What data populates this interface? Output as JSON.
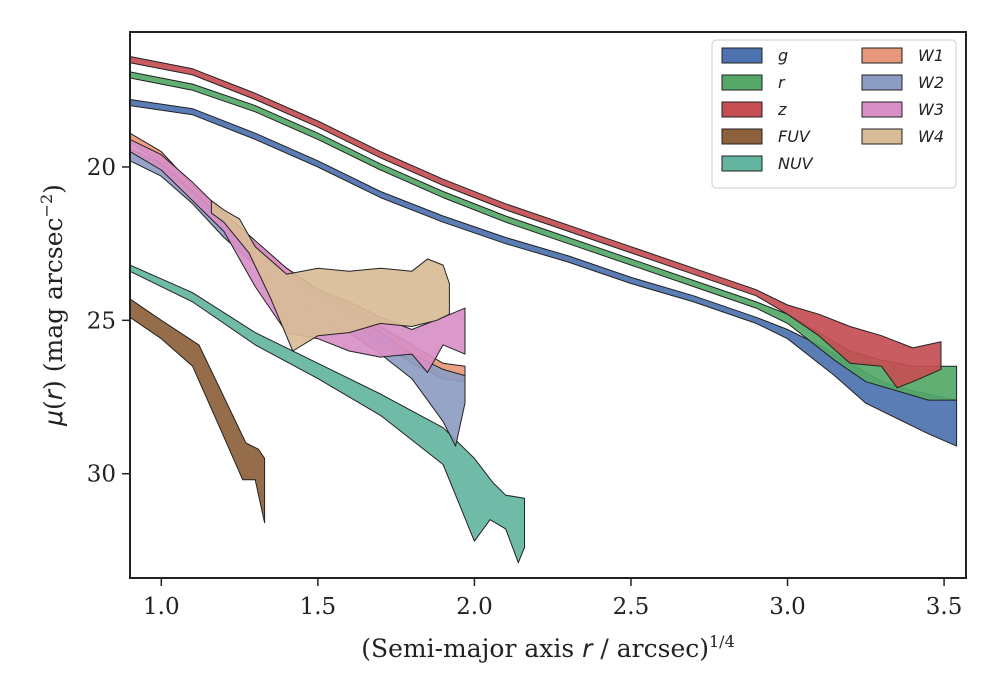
{
  "chart_data": {
    "type": "area",
    "xlabel_main": "(Semi-major axis ",
    "xlabel_r": "r",
    "xlabel_mid": " / arcsec)",
    "xlabel_exp": "1/4",
    "ylabel_mu": "μ",
    "ylabel_open": "(",
    "ylabel_r": "r",
    "ylabel_close": ") (mag arcsec",
    "ylabel_exp": "−2",
    "ylabel_end": ")",
    "xlim": [
      0.9,
      3.57
    ],
    "ylim": [
      33.4,
      15.6
    ],
    "y_inverted": true,
    "xticks": [
      1.0,
      1.5,
      2.0,
      2.5,
      3.0,
      3.5
    ],
    "xtick_labels": [
      "1.0",
      "1.5",
      "2.0",
      "2.5",
      "3.0",
      "3.5"
    ],
    "yticks": [
      20,
      25,
      30
    ],
    "ytick_labels": [
      "20",
      "25",
      "30"
    ],
    "grid": false,
    "legend_position": "top-right",
    "legend_columns": 2,
    "series": [
      {
        "name": "g",
        "color": "#4c72b0",
        "upper": [
          [
            0.9,
            17.8
          ],
          [
            1.1,
            18.1
          ],
          [
            1.3,
            18.9
          ],
          [
            1.5,
            19.8
          ],
          [
            1.7,
            20.8
          ],
          [
            1.9,
            21.6
          ],
          [
            2.1,
            22.3
          ],
          [
            2.3,
            22.9
          ],
          [
            2.5,
            23.6
          ],
          [
            2.7,
            24.2
          ],
          [
            2.9,
            24.9
          ],
          [
            3.0,
            25.3
          ],
          [
            3.1,
            25.8
          ],
          [
            3.2,
            26.4
          ],
          [
            3.3,
            27.0
          ],
          [
            3.4,
            27.3
          ],
          [
            3.54,
            27.6
          ]
        ],
        "lower": [
          [
            3.54,
            29.1
          ],
          [
            3.45,
            28.7
          ],
          [
            3.35,
            28.2
          ],
          [
            3.25,
            27.7
          ],
          [
            3.15,
            26.8
          ],
          [
            3.0,
            25.6
          ],
          [
            2.9,
            25.1
          ],
          [
            2.7,
            24.4
          ],
          [
            2.5,
            23.8
          ],
          [
            2.3,
            23.1
          ],
          [
            2.1,
            22.5
          ],
          [
            1.9,
            21.8
          ],
          [
            1.7,
            21.0
          ],
          [
            1.5,
            20.0
          ],
          [
            1.3,
            19.1
          ],
          [
            1.1,
            18.3
          ],
          [
            0.9,
            18.0
          ]
        ]
      },
      {
        "name": "r",
        "color": "#55a868",
        "upper": [
          [
            0.9,
            16.9
          ],
          [
            1.1,
            17.3
          ],
          [
            1.3,
            18.0
          ],
          [
            1.5,
            18.9
          ],
          [
            1.7,
            19.9
          ],
          [
            1.9,
            20.8
          ],
          [
            2.1,
            21.6
          ],
          [
            2.3,
            22.3
          ],
          [
            2.5,
            23.0
          ],
          [
            2.7,
            23.7
          ],
          [
            2.9,
            24.4
          ],
          [
            3.0,
            24.8
          ],
          [
            3.1,
            25.4
          ],
          [
            3.2,
            26.0
          ],
          [
            3.3,
            26.3
          ],
          [
            3.4,
            26.5
          ],
          [
            3.54,
            26.5
          ]
        ],
        "lower": [
          [
            3.54,
            27.6
          ],
          [
            3.45,
            27.6
          ],
          [
            3.35,
            27.3
          ],
          [
            3.25,
            27.0
          ],
          [
            3.15,
            26.3
          ],
          [
            3.0,
            25.1
          ],
          [
            2.9,
            24.6
          ],
          [
            2.7,
            23.9
          ],
          [
            2.5,
            23.2
          ],
          [
            2.3,
            22.5
          ],
          [
            2.1,
            21.8
          ],
          [
            1.9,
            21.0
          ],
          [
            1.7,
            20.1
          ],
          [
            1.5,
            19.1
          ],
          [
            1.3,
            18.2
          ],
          [
            1.1,
            17.5
          ],
          [
            0.9,
            17.1
          ]
        ]
      },
      {
        "name": "z",
        "color": "#c44e52",
        "upper": [
          [
            0.9,
            16.4
          ],
          [
            1.1,
            16.8
          ],
          [
            1.3,
            17.6
          ],
          [
            1.5,
            18.5
          ],
          [
            1.7,
            19.5
          ],
          [
            1.9,
            20.4
          ],
          [
            2.1,
            21.2
          ],
          [
            2.3,
            21.9
          ],
          [
            2.5,
            22.6
          ],
          [
            2.7,
            23.3
          ],
          [
            2.9,
            24.0
          ],
          [
            3.0,
            24.5
          ],
          [
            3.1,
            24.8
          ],
          [
            3.2,
            25.2
          ],
          [
            3.3,
            25.5
          ],
          [
            3.4,
            25.9
          ],
          [
            3.49,
            25.7
          ]
        ],
        "lower": [
          [
            3.49,
            26.6
          ],
          [
            3.4,
            27.0
          ],
          [
            3.35,
            27.2
          ],
          [
            3.3,
            26.5
          ],
          [
            3.2,
            26.4
          ],
          [
            3.1,
            25.5
          ],
          [
            3.0,
            24.8
          ],
          [
            2.9,
            24.2
          ],
          [
            2.7,
            23.5
          ],
          [
            2.5,
            22.8
          ],
          [
            2.3,
            22.1
          ],
          [
            2.1,
            21.4
          ],
          [
            1.9,
            20.6
          ],
          [
            1.7,
            19.7
          ],
          [
            1.5,
            18.7
          ],
          [
            1.3,
            17.8
          ],
          [
            1.1,
            17.0
          ],
          [
            0.9,
            16.6
          ]
        ]
      },
      {
        "name": "FUV",
        "color": "#8c613c",
        "upper": [
          [
            0.9,
            24.3
          ],
          [
            1.0,
            25.0
          ],
          [
            1.12,
            25.8
          ],
          [
            1.2,
            27.5
          ],
          [
            1.27,
            29.0
          ],
          [
            1.31,
            29.2
          ],
          [
            1.33,
            29.5
          ]
        ],
        "lower": [
          [
            1.33,
            31.6
          ],
          [
            1.3,
            30.2
          ],
          [
            1.26,
            30.2
          ],
          [
            1.2,
            28.8
          ],
          [
            1.1,
            26.5
          ],
          [
            1.0,
            25.6
          ],
          [
            0.9,
            24.9
          ]
        ]
      },
      {
        "name": "NUV",
        "color": "#64b5a0",
        "upper": [
          [
            0.9,
            23.2
          ],
          [
            1.1,
            24.1
          ],
          [
            1.3,
            25.4
          ],
          [
            1.5,
            26.4
          ],
          [
            1.7,
            27.4
          ],
          [
            1.9,
            28.5
          ],
          [
            2.0,
            29.5
          ],
          [
            2.06,
            30.3
          ],
          [
            2.1,
            30.7
          ],
          [
            2.16,
            30.8
          ]
        ],
        "lower": [
          [
            2.16,
            32.4
          ],
          [
            2.14,
            32.9
          ],
          [
            2.1,
            31.8
          ],
          [
            2.05,
            31.5
          ],
          [
            2.0,
            32.2
          ],
          [
            1.9,
            29.7
          ],
          [
            1.7,
            28.1
          ],
          [
            1.5,
            26.9
          ],
          [
            1.3,
            25.8
          ],
          [
            1.1,
            24.4
          ],
          [
            0.9,
            23.4
          ]
        ]
      },
      {
        "name": "W1",
        "color": "#e8987a",
        "upper": [
          [
            0.9,
            18.9
          ],
          [
            1.0,
            19.5
          ],
          [
            1.1,
            20.6
          ],
          [
            1.2,
            21.5
          ],
          [
            1.3,
            22.5
          ],
          [
            1.4,
            23.3
          ],
          [
            1.5,
            24.0
          ],
          [
            1.6,
            24.5
          ],
          [
            1.7,
            25.2
          ],
          [
            1.8,
            25.8
          ],
          [
            1.9,
            26.4
          ],
          [
            1.97,
            26.5
          ]
        ],
        "lower": [
          [
            1.97,
            27.0
          ],
          [
            1.9,
            26.9
          ],
          [
            1.8,
            26.4
          ],
          [
            1.7,
            25.7
          ],
          [
            1.6,
            25.1
          ],
          [
            1.5,
            24.5
          ],
          [
            1.4,
            23.8
          ],
          [
            1.3,
            22.9
          ],
          [
            1.2,
            21.9
          ],
          [
            1.1,
            20.9
          ],
          [
            1.0,
            19.9
          ],
          [
            0.9,
            19.2
          ]
        ]
      },
      {
        "name": "W2",
        "color": "#8c9cc2",
        "upper": [
          [
            0.9,
            19.4
          ],
          [
            1.0,
            19.9
          ],
          [
            1.1,
            20.8
          ],
          [
            1.2,
            21.7
          ],
          [
            1.3,
            22.6
          ],
          [
            1.4,
            23.5
          ],
          [
            1.5,
            24.2
          ],
          [
            1.6,
            24.8
          ],
          [
            1.7,
            25.4
          ],
          [
            1.8,
            26.1
          ],
          [
            1.9,
            26.6
          ],
          [
            1.97,
            26.8
          ]
        ],
        "lower": [
          [
            1.97,
            27.7
          ],
          [
            1.94,
            29.1
          ],
          [
            1.9,
            28.3
          ],
          [
            1.85,
            27.6
          ],
          [
            1.8,
            26.9
          ],
          [
            1.7,
            26.1
          ],
          [
            1.6,
            25.4
          ],
          [
            1.5,
            24.8
          ],
          [
            1.4,
            24.1
          ],
          [
            1.3,
            23.2
          ],
          [
            1.2,
            22.3
          ],
          [
            1.1,
            21.2
          ],
          [
            1.0,
            20.3
          ],
          [
            0.9,
            19.8
          ]
        ]
      },
      {
        "name": "W3",
        "color": "#d88fc6",
        "upper": [
          [
            0.9,
            19.1
          ],
          [
            1.0,
            19.6
          ],
          [
            1.1,
            20.5
          ],
          [
            1.2,
            21.5
          ],
          [
            1.3,
            22.4
          ],
          [
            1.4,
            23.3
          ],
          [
            1.5,
            24.0
          ],
          [
            1.6,
            24.4
          ],
          [
            1.7,
            24.9
          ],
          [
            1.8,
            25.3
          ],
          [
            1.9,
            24.9
          ],
          [
            1.97,
            24.6
          ]
        ],
        "lower": [
          [
            1.97,
            26.1
          ],
          [
            1.9,
            25.8
          ],
          [
            1.85,
            26.7
          ],
          [
            1.8,
            26.1
          ],
          [
            1.7,
            26.2
          ],
          [
            1.6,
            26.0
          ],
          [
            1.5,
            25.6
          ],
          [
            1.4,
            25.4
          ],
          [
            1.3,
            23.9
          ],
          [
            1.2,
            22.1
          ],
          [
            1.1,
            21.1
          ],
          [
            1.0,
            20.1
          ],
          [
            0.9,
            19.5
          ]
        ]
      },
      {
        "name": "W4",
        "color": "#d9bc97",
        "upper": [
          [
            1.16,
            21.1
          ],
          [
            1.2,
            21.4
          ],
          [
            1.25,
            21.7
          ],
          [
            1.3,
            22.6
          ],
          [
            1.4,
            23.5
          ],
          [
            1.5,
            23.3
          ],
          [
            1.6,
            23.4
          ],
          [
            1.7,
            23.3
          ],
          [
            1.8,
            23.4
          ],
          [
            1.85,
            23.0
          ],
          [
            1.9,
            23.2
          ],
          [
            1.92,
            23.8
          ]
        ],
        "lower": [
          [
            1.92,
            24.8
          ],
          [
            1.88,
            25.0
          ],
          [
            1.8,
            25.2
          ],
          [
            1.7,
            25.1
          ],
          [
            1.6,
            25.4
          ],
          [
            1.5,
            25.5
          ],
          [
            1.42,
            26.0
          ],
          [
            1.35,
            24.3
          ],
          [
            1.28,
            22.8
          ],
          [
            1.2,
            21.8
          ],
          [
            1.16,
            21.5
          ]
        ]
      }
    ]
  }
}
